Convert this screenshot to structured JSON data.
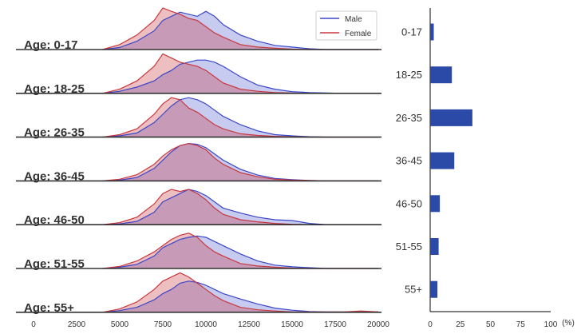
{
  "chart_data": [
    {
      "type": "area",
      "chart": "ridgeline-density",
      "xlim": [
        0,
        20000
      ],
      "xticks": [
        0,
        2500,
        5000,
        7500,
        10000,
        12500,
        15000,
        17500,
        20000
      ],
      "legend": {
        "placement": "top-right",
        "entries": [
          "Male",
          "Female"
        ]
      },
      "colors": {
        "Male": "#3b46c8",
        "Female": "#c8383f"
      },
      "x": [
        4000,
        5000,
        6000,
        7000,
        7500,
        8000,
        8500,
        9000,
        9500,
        10000,
        10500,
        11000,
        12000,
        13000,
        14000,
        15000,
        16000,
        17000,
        18000,
        19000,
        20000
      ],
      "rows": [
        {
          "label": "Age: 0-17",
          "Male": [
            0,
            0.05,
            0.2,
            0.45,
            0.7,
            0.8,
            0.9,
            0.85,
            0.8,
            0.92,
            0.8,
            0.6,
            0.35,
            0.2,
            0.1,
            0.06,
            0.02,
            0,
            0,
            0,
            0
          ],
          "Female": [
            0,
            0.12,
            0.35,
            0.7,
            1.0,
            0.92,
            0.85,
            0.75,
            0.7,
            0.55,
            0.4,
            0.3,
            0.12,
            0.06,
            0.03,
            0.01,
            0,
            0,
            0,
            0,
            0
          ]
        },
        {
          "label": "Age: 18-25",
          "Male": [
            0,
            0.05,
            0.15,
            0.3,
            0.45,
            0.55,
            0.7,
            0.75,
            0.8,
            0.8,
            0.75,
            0.65,
            0.4,
            0.2,
            0.1,
            0.04,
            0.02,
            0.01,
            0,
            0,
            0
          ],
          "Female": [
            0,
            0.1,
            0.3,
            0.65,
            0.95,
            0.85,
            0.75,
            0.7,
            0.65,
            0.55,
            0.4,
            0.25,
            0.1,
            0.05,
            0.02,
            0.01,
            0,
            0,
            0,
            0,
            0
          ]
        },
        {
          "label": "Age: 26-35",
          "Male": [
            0,
            0.03,
            0.1,
            0.35,
            0.55,
            0.75,
            0.9,
            0.95,
            0.9,
            0.8,
            0.65,
            0.5,
            0.3,
            0.15,
            0.06,
            0.03,
            0.01,
            0,
            0,
            0,
            0
          ],
          "Female": [
            0,
            0.06,
            0.2,
            0.55,
            0.8,
            0.95,
            0.9,
            0.7,
            0.6,
            0.45,
            0.3,
            0.2,
            0.08,
            0.04,
            0.02,
            0.01,
            0,
            0,
            0,
            0,
            0
          ]
        },
        {
          "label": "Age: 36-45",
          "Male": [
            0,
            0.02,
            0.08,
            0.3,
            0.5,
            0.7,
            0.85,
            0.9,
            0.88,
            0.8,
            0.65,
            0.5,
            0.28,
            0.14,
            0.06,
            0.03,
            0.01,
            0,
            0,
            0,
            0
          ],
          "Female": [
            0,
            0.04,
            0.15,
            0.4,
            0.6,
            0.75,
            0.85,
            0.9,
            0.85,
            0.75,
            0.55,
            0.4,
            0.2,
            0.1,
            0.04,
            0.02,
            0.01,
            0,
            0,
            0,
            0
          ]
        },
        {
          "label": "Age: 46-50",
          "Male": [
            0,
            0.02,
            0.08,
            0.3,
            0.55,
            0.65,
            0.75,
            0.85,
            0.8,
            0.7,
            0.55,
            0.4,
            0.28,
            0.18,
            0.12,
            0.1,
            0.03,
            0,
            0,
            0,
            0
          ],
          "Female": [
            0,
            0.05,
            0.18,
            0.5,
            0.75,
            0.85,
            0.8,
            0.85,
            0.75,
            0.6,
            0.4,
            0.25,
            0.12,
            0.07,
            0.03,
            0.01,
            0,
            0,
            0,
            0,
            0
          ]
        },
        {
          "label": "Age: 51-55",
          "Male": [
            0,
            0.03,
            0.1,
            0.3,
            0.5,
            0.6,
            0.7,
            0.75,
            0.78,
            0.75,
            0.65,
            0.55,
            0.35,
            0.18,
            0.08,
            0.04,
            0.02,
            0,
            0,
            0,
            0
          ],
          "Female": [
            0,
            0.05,
            0.18,
            0.4,
            0.55,
            0.7,
            0.8,
            0.85,
            0.75,
            0.55,
            0.4,
            0.3,
            0.12,
            0.06,
            0.03,
            0.01,
            0,
            0,
            0,
            0,
            0
          ]
        },
        {
          "label": "Age: 55+",
          "Male": [
            0,
            0.04,
            0.12,
            0.3,
            0.45,
            0.55,
            0.7,
            0.75,
            0.72,
            0.65,
            0.55,
            0.45,
            0.32,
            0.2,
            0.1,
            0.05,
            0.02,
            0.01,
            0.01,
            0.02,
            0.01
          ],
          "Female": [
            0,
            0.08,
            0.25,
            0.55,
            0.75,
            0.85,
            0.95,
            0.85,
            0.7,
            0.55,
            0.4,
            0.28,
            0.12,
            0.06,
            0.03,
            0.01,
            0.01,
            0.01,
            0.01,
            0.03,
            0.01
          ]
        }
      ]
    },
    {
      "type": "bar",
      "orientation": "horizontal",
      "categories": [
        "0-17",
        "18-25",
        "26-35",
        "36-45",
        "46-50",
        "51-55",
        "55+"
      ],
      "values": [
        3,
        18,
        35,
        20,
        8,
        7,
        6
      ],
      "xlim": [
        0,
        100
      ],
      "xticks": [
        0,
        25,
        50,
        75,
        100
      ],
      "xlabel": "(%)",
      "color": "#2b4aa8"
    }
  ]
}
